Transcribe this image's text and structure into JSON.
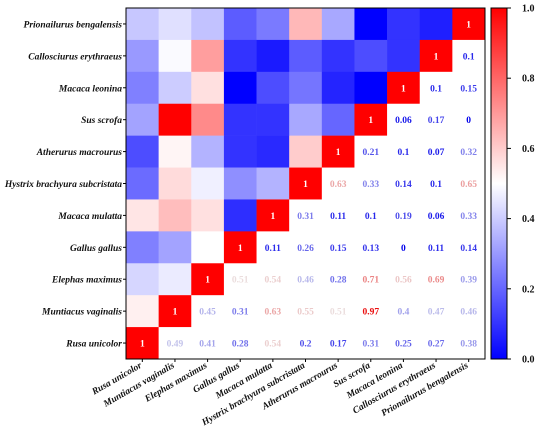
{
  "chart_data": {
    "type": "heatmap",
    "title": "",
    "row_labels": [
      "Prionailurus bengalensis",
      "Callosciurus erythraeus",
      "Macaca leonina",
      "Sus scrofa",
      "Atherurus macrourus",
      "Hystrix brachyura subcristata",
      "Macaca mulatta",
      "Gallus gallus",
      "Elephas maximus",
      "Muntiacus vaginalis",
      "Rusa unicolor"
    ],
    "col_labels": [
      "Rusa unicolor",
      "Muntiacus vaginalis",
      "Elephas maximus",
      "Gallus gallus",
      "Macaca mulatta",
      "Hystrix brachyura subcristata",
      "Atherurus macrourus",
      "Sus scrofa",
      "Macaca leonina",
      "Callosciurus erythraeus",
      "Prionailurus bengalensis"
    ],
    "upper_values": [
      [
        0.39,
        0.44,
        0.38,
        0.18,
        0.24,
        0.64,
        0.33,
        0.0,
        0.1,
        0.06,
        1
      ],
      [
        0.3,
        0.49,
        0.69,
        0.1,
        0.05,
        0.18,
        0.1,
        0.15,
        0.1,
        1,
        0.1
      ],
      [
        0.25,
        0.4,
        0.56,
        0.0,
        0.15,
        0.23,
        0.07,
        0.0,
        1,
        0.1,
        0.15
      ],
      [
        0.32,
        1,
        0.73,
        0.1,
        0.1,
        0.33,
        0.2,
        1,
        0.06,
        0.17,
        0
      ],
      [
        0.15,
        0.52,
        0.35,
        0.1,
        0.08,
        0.6,
        1,
        0.21,
        0.1,
        0.07,
        0.32
      ],
      [
        0.21,
        0.57,
        0.47,
        0.28,
        0.35,
        1,
        0.63,
        0.33,
        0.14,
        0.1,
        0.65
      ],
      [
        0.55,
        0.63,
        0.56,
        0.09,
        1,
        0.31,
        0.11,
        0.1,
        0.19,
        0.06,
        0.33
      ],
      [
        0.25,
        0.32,
        0.5,
        1,
        0.11,
        0.26,
        0.15,
        0.13,
        0,
        0.11,
        0.14
      ],
      [
        0.42,
        0.46,
        1,
        0.51,
        0.54,
        0.46,
        0.28,
        0.71,
        0.56,
        0.69,
        0.39
      ],
      [
        0.53,
        1,
        0.45,
        0.31,
        0.63,
        0.55,
        0.51,
        0.97,
        0.4,
        0.47,
        0.46
      ],
      [
        1,
        0.49,
        0.41,
        0.28,
        0.54,
        0.2,
        0.17,
        0.31,
        0.25,
        0.27,
        0.38
      ]
    ],
    "shown_labels": [
      [
        null,
        null,
        null,
        null,
        null,
        null,
        null,
        null,
        null,
        null,
        "1"
      ],
      [
        null,
        null,
        null,
        null,
        null,
        null,
        null,
        null,
        null,
        "1",
        "0.1"
      ],
      [
        null,
        null,
        null,
        null,
        null,
        null,
        null,
        null,
        "1",
        "0.1",
        "0.15"
      ],
      [
        null,
        null,
        null,
        null,
        null,
        null,
        null,
        "1",
        "0.06",
        "0.17",
        "0"
      ],
      [
        null,
        null,
        null,
        null,
        null,
        null,
        "1",
        "0.21",
        "0.1",
        "0.07",
        "0.32"
      ],
      [
        null,
        null,
        null,
        null,
        null,
        "1",
        "0.63",
        "0.33",
        "0.14",
        "0.1",
        "0.65"
      ],
      [
        null,
        null,
        null,
        null,
        "1",
        "0.31",
        "0.11",
        "0.1",
        "0.19",
        "0.06",
        "0.33"
      ],
      [
        null,
        null,
        null,
        "1",
        "0.11",
        "0.26",
        "0.15",
        "0.13",
        "0",
        "0.11",
        "0.14"
      ],
      [
        null,
        null,
        "1",
        "0.51",
        "0.54",
        "0.46",
        "0.28",
        "0.71",
        "0.56",
        "0.69",
        "0.39"
      ],
      [
        null,
        "1",
        "0.45",
        "0.31",
        "0.63",
        "0.55",
        "0.51",
        "0.97",
        "0.4",
        "0.47",
        "0.46"
      ],
      [
        "1",
        "0.49",
        "0.41",
        "0.28",
        "0.54",
        "0.2",
        "0.17",
        "0.31",
        "0.25",
        "0.27",
        "0.38"
      ]
    ],
    "colorbar": {
      "min": 0.0,
      "max": 1.0,
      "ticks": [
        "0.0",
        "0.2",
        "0.4",
        "0.6",
        "0.8",
        "1.0"
      ],
      "colors": [
        "#0000ff",
        "#ffffff",
        "#ff0000"
      ]
    },
    "grid": false,
    "legend": "right"
  }
}
